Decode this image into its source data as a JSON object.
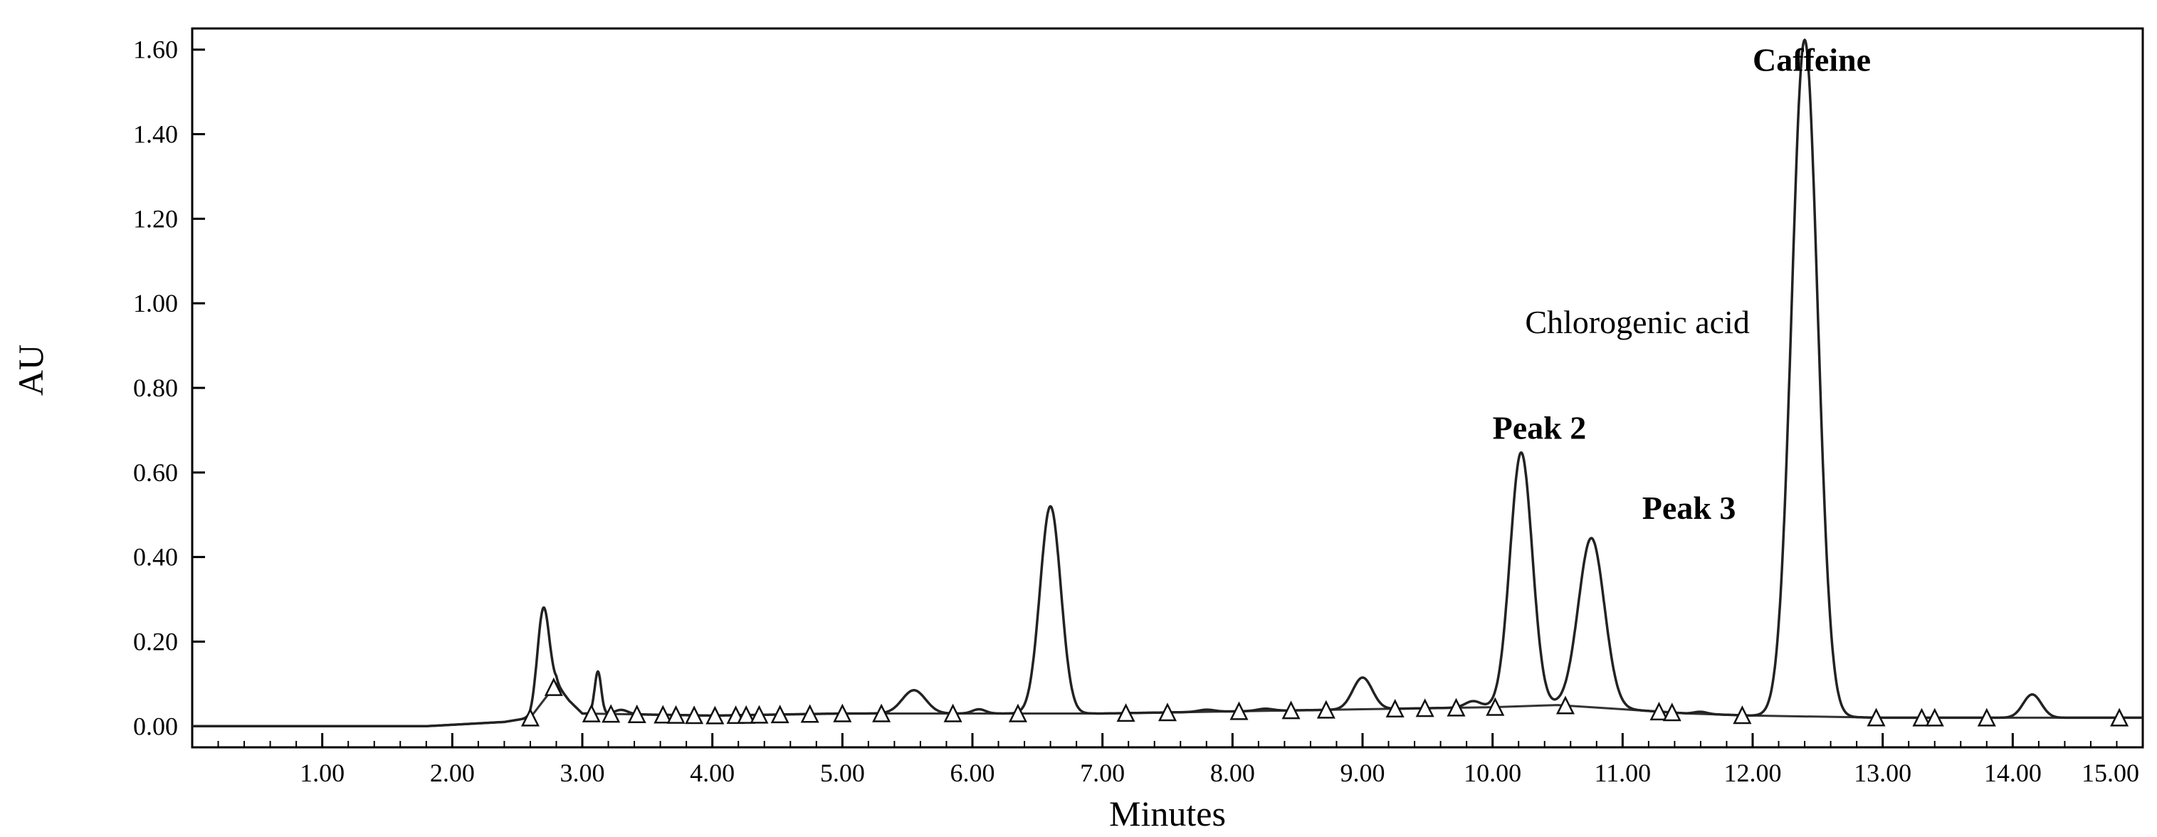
{
  "chart_data": {
    "type": "line",
    "title": "",
    "xlabel": "Minutes",
    "ylabel": "AU",
    "xlim": [
      0,
      15
    ],
    "ylim": [
      -0.05,
      1.65
    ],
    "grid": false,
    "legend": "none",
    "x_ticks": [
      "1.00",
      "2.00",
      "3.00",
      "4.00",
      "5.00",
      "6.00",
      "7.00",
      "8.00",
      "9.00",
      "10.00",
      "11.00",
      "12.00",
      "13.00",
      "14.00",
      "15.00"
    ],
    "y_ticks": [
      "0.00",
      "0.20",
      "0.40",
      "0.60",
      "0.80",
      "1.00",
      "1.20",
      "1.40",
      "1.60"
    ],
    "baseline": [
      [
        0,
        0.0
      ],
      [
        1.8,
        0.0
      ],
      [
        2.4,
        0.01
      ],
      [
        2.6,
        0.02
      ],
      [
        2.7,
        0.06
      ],
      [
        2.8,
        0.1
      ],
      [
        2.9,
        0.06
      ],
      [
        3.0,
        0.03
      ],
      [
        4.0,
        0.025
      ],
      [
        5.0,
        0.03
      ],
      [
        7.0,
        0.03
      ],
      [
        8.0,
        0.035
      ],
      [
        9.0,
        0.04
      ],
      [
        10.0,
        0.045
      ],
      [
        10.5,
        0.05
      ],
      [
        11.0,
        0.04
      ],
      [
        11.5,
        0.03
      ],
      [
        12.0,
        0.025
      ],
      [
        13.0,
        0.02
      ],
      [
        15.0,
        0.02
      ]
    ],
    "peaks": [
      {
        "rt": 2.7,
        "height": 0.22,
        "width": 0.045
      },
      {
        "rt": 3.12,
        "height": 0.1,
        "width": 0.025
      },
      {
        "rt": 3.3,
        "height": 0.01,
        "width": 0.05
      },
      {
        "rt": 5.55,
        "height": 0.055,
        "width": 0.09
      },
      {
        "rt": 6.05,
        "height": 0.01,
        "width": 0.05
      },
      {
        "rt": 6.6,
        "height": 0.49,
        "width": 0.08
      },
      {
        "rt": 7.8,
        "height": 0.005,
        "width": 0.06
      },
      {
        "rt": 8.25,
        "height": 0.005,
        "width": 0.06
      },
      {
        "rt": 9.0,
        "height": 0.075,
        "width": 0.075
      },
      {
        "rt": 9.85,
        "height": 0.015,
        "width": 0.06
      },
      {
        "rt": 10.22,
        "height": 0.6,
        "width": 0.085
      },
      {
        "rt": 10.76,
        "height": 0.4,
        "width": 0.1
      },
      {
        "rt": 11.6,
        "height": 0.005,
        "width": 0.05
      },
      {
        "rt": 12.4,
        "height": 1.6,
        "width": 0.1
      },
      {
        "rt": 14.15,
        "height": 0.055,
        "width": 0.07
      }
    ],
    "markers": [
      2.6,
      2.78,
      3.07,
      3.22,
      3.42,
      3.62,
      3.72,
      3.86,
      4.02,
      4.18,
      4.26,
      4.36,
      4.52,
      4.75,
      5.0,
      5.3,
      5.85,
      6.35,
      7.18,
      7.5,
      8.05,
      8.45,
      8.72,
      9.25,
      9.48,
      9.72,
      10.02,
      10.56,
      11.28,
      11.38,
      11.92,
      12.95,
      13.3,
      13.4,
      13.8,
      14.82
    ],
    "annotations": [
      {
        "text": "Caffeine",
        "x": 12.0,
        "y": 1.55,
        "bold": true
      },
      {
        "text": "Chlorogenic acid",
        "x": 10.25,
        "y": 0.93,
        "bold": false
      },
      {
        "text": "Peak 2",
        "x": 10.0,
        "y": 0.68,
        "bold": true
      },
      {
        "text": "Peak 3",
        "x": 11.15,
        "y": 0.49,
        "bold": true
      }
    ]
  }
}
